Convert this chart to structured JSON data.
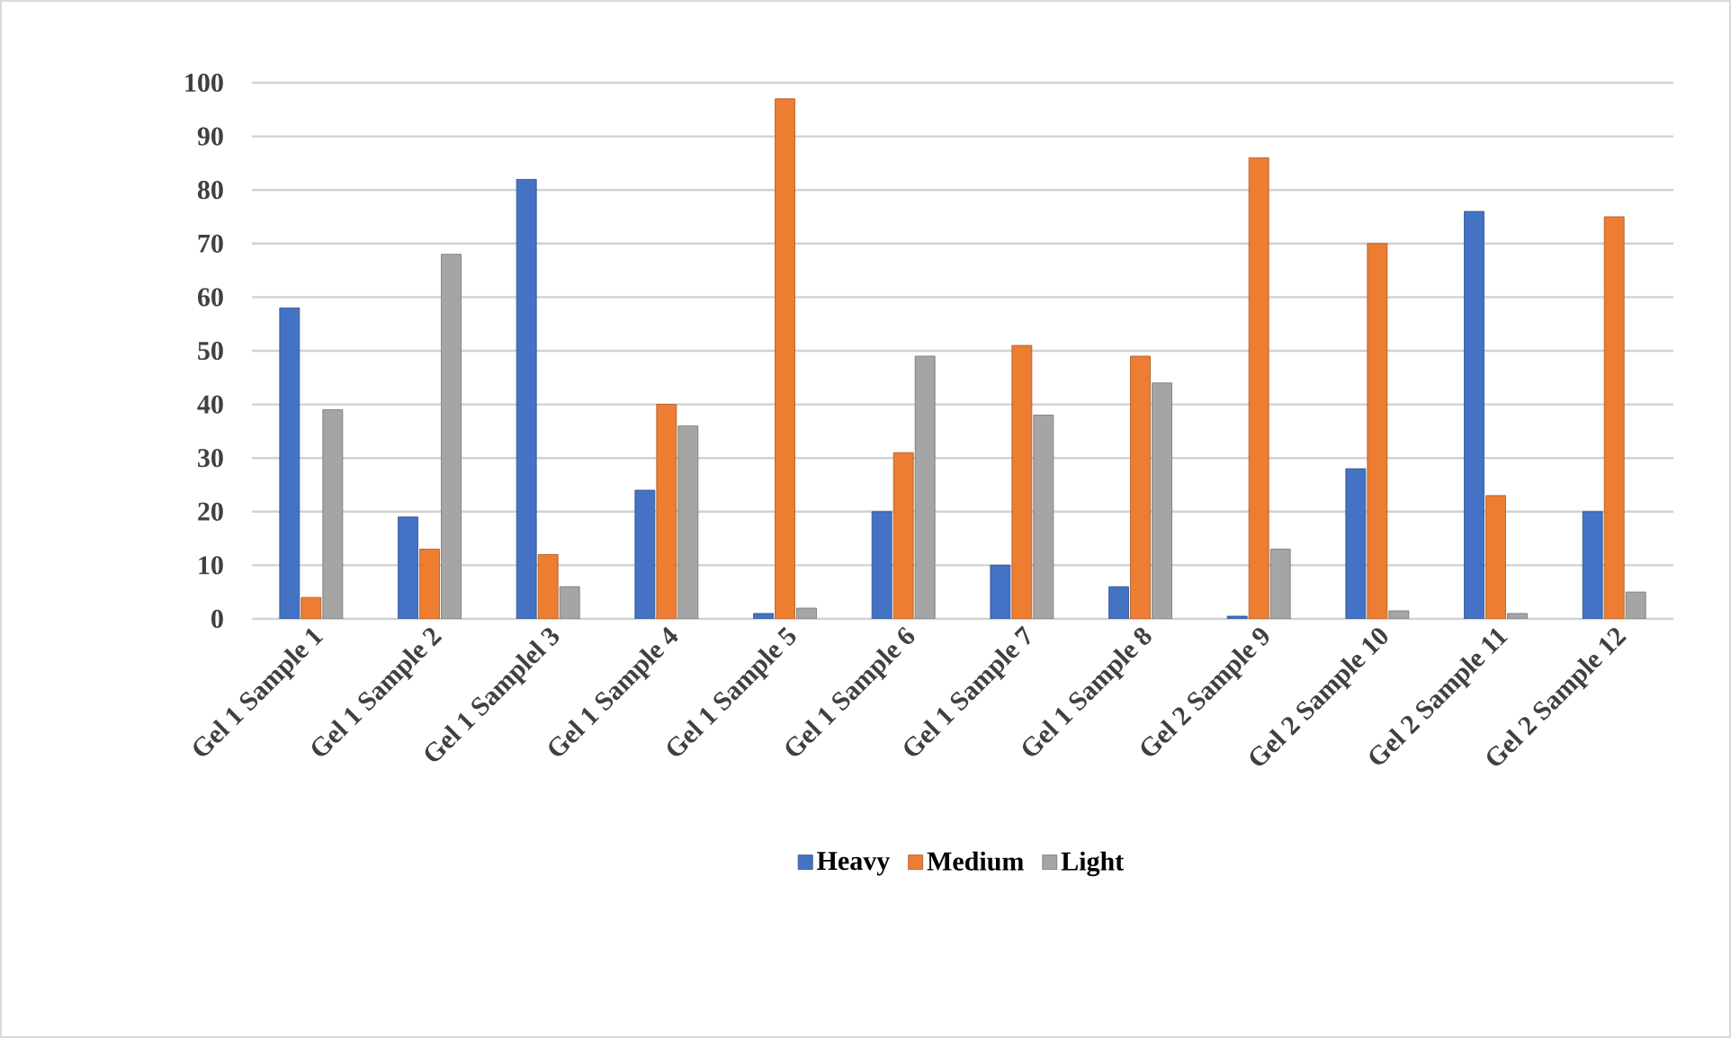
{
  "chart_data": {
    "type": "bar",
    "categories": [
      "Gel 1 Sample 1",
      "Gel 1 Sample 2",
      "Gel 1 Samplel 3",
      "Gel 1 Sample 4",
      "Gel 1 Sample 5",
      "Gel 1 Sample 6",
      "Gel 1 Sample 7",
      "Gel 1 Sample 8",
      "Gel 2 Sample 9",
      "Gel 2 Sample 10",
      "Gel 2 Sample 11",
      "Gel 2 Sample 12"
    ],
    "series": [
      {
        "name": "Heavy",
        "color": "#4472c4",
        "values": [
          58,
          19,
          82,
          24,
          1,
          20,
          10,
          6,
          0.5,
          28,
          76,
          20
        ]
      },
      {
        "name": "Medium",
        "color": "#ed7d31",
        "values": [
          4,
          13,
          12,
          40,
          97,
          31,
          51,
          49,
          86,
          70,
          23,
          75
        ]
      },
      {
        "name": "Light",
        "color": "#a5a5a5",
        "values": [
          39,
          68,
          6,
          36,
          2,
          49,
          38,
          44,
          13,
          1.5,
          1,
          5
        ]
      }
    ],
    "ylim": [
      0,
      100
    ],
    "yticks": [
      0,
      10,
      20,
      30,
      40,
      50,
      60,
      70,
      80,
      90,
      100
    ],
    "grid": "y",
    "legend": "bottom"
  }
}
